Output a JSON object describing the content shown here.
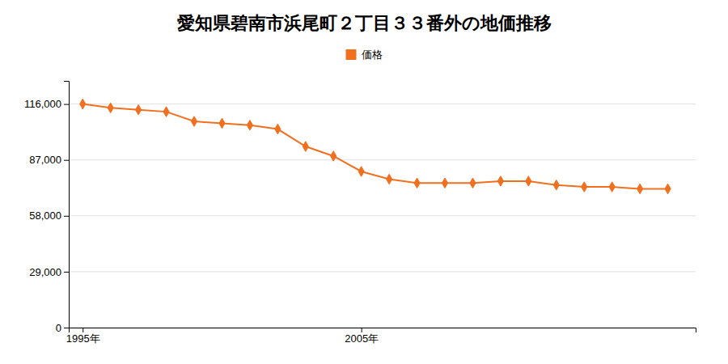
{
  "chart_data": {
    "type": "line",
    "title": "愛知県碧南市浜尾町２丁目３３番外の地価推移",
    "x": [
      1995,
      1996,
      1997,
      1998,
      1999,
      2000,
      2001,
      2002,
      2003,
      2004,
      2005,
      2006,
      2007,
      2008,
      2009,
      2010,
      2011,
      2012,
      2013,
      2014,
      2015,
      2016
    ],
    "series": [
      {
        "name": "価格",
        "color": "#f07020",
        "marker": "diamond",
        "values": [
          116000,
          114000,
          113000,
          112000,
          107000,
          106000,
          105000,
          103000,
          94000,
          89000,
          81000,
          77000,
          75000,
          75000,
          75000,
          76000,
          76000,
          74000,
          73000,
          73000,
          72000,
          72000
        ]
      }
    ],
    "xlim": [
      1994.5,
      2017
    ],
    "xticks": [
      {
        "value": 1995,
        "label": "1995年"
      },
      {
        "value": 2005,
        "label": "2005年"
      }
    ],
    "ylim": [
      0,
      128000
    ],
    "yticks": [
      0,
      {
        "value": 29000,
        "label": "29,000"
      },
      {
        "value": 58000,
        "label": "58,000"
      },
      {
        "value": 87000,
        "label": "87,000"
      },
      {
        "value": 116000,
        "label": "116,000"
      }
    ],
    "grid": true,
    "legend": "top"
  }
}
